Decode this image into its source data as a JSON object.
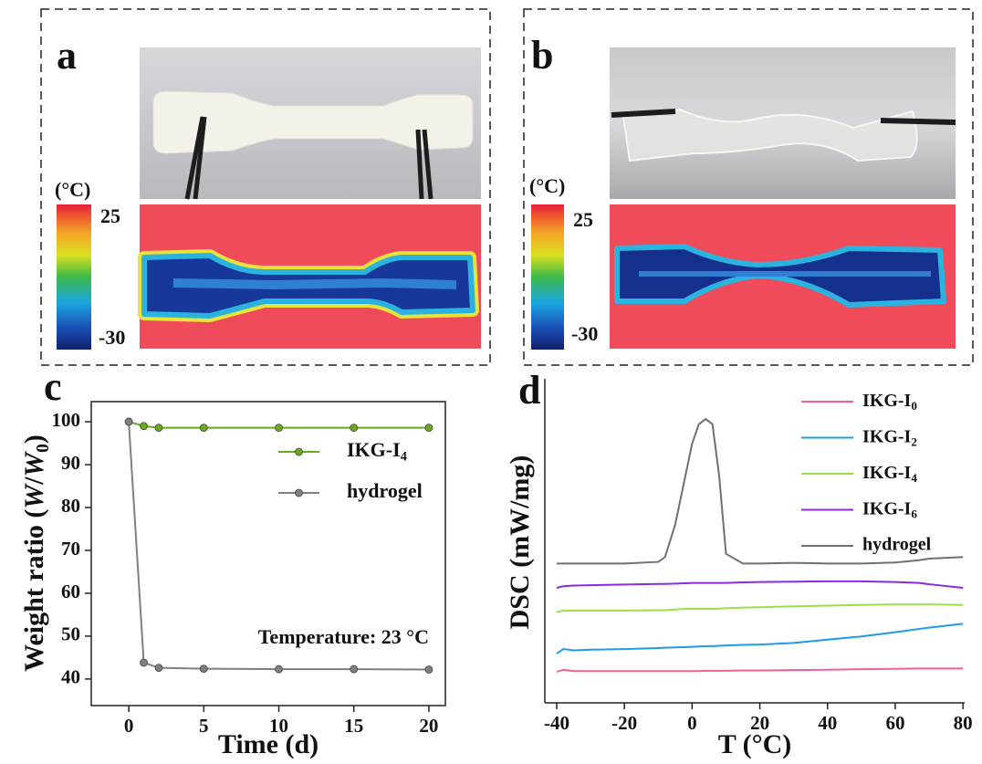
{
  "panel_a": {
    "label": "a",
    "unit": "(°C)",
    "scale_max": "25",
    "scale_min": "-30"
  },
  "panel_b": {
    "label": "b",
    "unit": "(°C)",
    "scale_max": "25",
    "scale_min": "-30"
  },
  "chart_data": [
    {
      "type": "line",
      "panel_label": "c",
      "xlabel": "Time (d)",
      "ylabel": [
        "Weight ratio (",
        "W",
        "/",
        "W",
        "0",
        ")"
      ],
      "annotation": "Temperature: 23 °C",
      "x": [
        0,
        1,
        2,
        5,
        10,
        15,
        20
      ],
      "series": [
        {
          "name": "IKG-I4",
          "color": "#6aa81e",
          "values": [
            100,
            99,
            98.6,
            98.6,
            98.6,
            98.6,
            98.6
          ]
        },
        {
          "name": "hydrogel",
          "color": "#7f7f7f",
          "values": [
            100,
            43.8,
            42.6,
            42.4,
            42.3,
            42.3,
            42.2
          ]
        }
      ],
      "markers": true,
      "xlim": [
        -2.5,
        21.1
      ],
      "xticks": [
        0,
        5,
        10,
        15,
        20
      ],
      "ylim": [
        33.8,
        104.7
      ],
      "yticks": [
        40,
        50,
        60,
        70,
        80,
        90,
        100
      ]
    },
    {
      "type": "line",
      "panel_label": "d",
      "xlabel": "T (°C)",
      "ylabel": [
        "DSC (mW/mg)"
      ],
      "x": [
        -40,
        -38,
        -35,
        -30,
        -20,
        -10,
        -8,
        -5,
        -2,
        0,
        2,
        4,
        6,
        8,
        10,
        15,
        20,
        30,
        40,
        50,
        60,
        67,
        70,
        80
      ],
      "series": [
        {
          "name": "IKG-I0",
          "color": "#f06292",
          "values": [
            9.6,
            10.2,
            9.8,
            9.8,
            9.8,
            9.8,
            9.8,
            9.8,
            9.8,
            9.8,
            9.8,
            9.9,
            9.9,
            9.9,
            9.9,
            10,
            10,
            10.1,
            10.2,
            10.4,
            10.5,
            10.6,
            10.6,
            10.6
          ]
        },
        {
          "name": "IKG-I2",
          "color": "#1e9be8",
          "values": [
            15.2,
            16.6,
            16.2,
            16.4,
            16.6,
            16.9,
            17,
            17.1,
            17.2,
            17.3,
            17.4,
            17.5,
            17.5,
            17.6,
            17.7,
            17.9,
            18,
            18.5,
            19.5,
            20.5,
            21.8,
            22.8,
            23.2,
            24.4
          ]
        },
        {
          "name": "IKG-I4",
          "color": "#9adf4a",
          "values": [
            28,
            28.5,
            28.5,
            28.5,
            28.5,
            28.6,
            28.6,
            28.8,
            29,
            29,
            29,
            29,
            29,
            29.1,
            29.2,
            29.4,
            29.5,
            29.8,
            30,
            30.2,
            30.4,
            30.4,
            30.4,
            30.2
          ]
        },
        {
          "name": "IKG-I6",
          "color": "#8a2be2",
          "values": [
            35.5,
            36,
            36.2,
            36.3,
            36.5,
            36.7,
            36.7,
            36.8,
            36.9,
            37,
            37,
            37,
            37,
            37,
            37,
            37.2,
            37.3,
            37.4,
            37.5,
            37.5,
            37.3,
            37,
            36.6,
            35.5
          ]
        },
        {
          "name": "hydrogel",
          "color": "#707070",
          "values": [
            43,
            43,
            43,
            43,
            43,
            43.5,
            45,
            55,
            70,
            80,
            86,
            87.6,
            86,
            70,
            46,
            43,
            43,
            43.2,
            43,
            43,
            43.3,
            44,
            44.5,
            45
          ]
        }
      ],
      "markers": false,
      "xlim": [
        -43.5,
        80.5
      ],
      "xticks": [
        -40,
        -20,
        0,
        20,
        40,
        60,
        80
      ],
      "ylim": [
        0,
        100
      ],
      "yticks": []
    }
  ]
}
